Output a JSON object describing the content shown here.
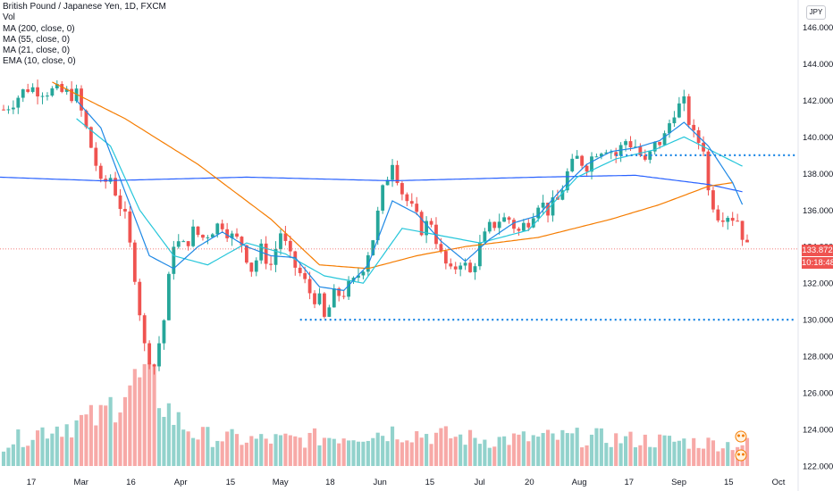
{
  "header": {
    "title": "British Pound / Japanese Yen, 1D, FXCM",
    "currency_badge": "JPY"
  },
  "legend": {
    "items": [
      "Vol",
      "MA (200, close, 0)",
      "MA (55, close, 0)",
      "MA (21, close, 0)",
      "EMA (10, close, 0)"
    ]
  },
  "price_badges": {
    "last_price": "133.872",
    "countdown": "10:18:48"
  },
  "colors": {
    "up": "#26a69a",
    "down": "#ef5350",
    "ma200": "#2962ff",
    "ma55": "#f57c00",
    "ma21": "#26c6da",
    "ema10": "#1e88e5",
    "level": "#1e88e5"
  },
  "chart_data": {
    "type": "candlestick",
    "symbol": "GBP/JPY",
    "timeframe": "1D",
    "ylim": [
      122,
      147
    ],
    "yticks": [
      "146.000",
      "144.000",
      "142.000",
      "140.000",
      "138.000",
      "136.000",
      "134.000",
      "132.000",
      "130.000",
      "128.000",
      "126.000",
      "124.000",
      "122.000"
    ],
    "xtick_labels": [
      "17",
      "Mar",
      "16",
      "Apr",
      "15",
      "May",
      "18",
      "Jun",
      "15",
      "Jul",
      "20",
      "Aug",
      "17",
      "Sep",
      "15",
      "Oct"
    ],
    "horizontal_levels": [
      139.0,
      130.0
    ],
    "last_price": 133.872,
    "close_path": [
      [
        0,
        141.5
      ],
      [
        5,
        142.7
      ],
      [
        10,
        142.5
      ],
      [
        15,
        142.3
      ],
      [
        19,
        138.5
      ],
      [
        20,
        137.3
      ],
      [
        22,
        137.8
      ],
      [
        25,
        135.5
      ],
      [
        27,
        132.5
      ],
      [
        29,
        128.5
      ],
      [
        31,
        127.5
      ],
      [
        33,
        130.0
      ],
      [
        35,
        134.3
      ],
      [
        37,
        134.0
      ],
      [
        39,
        134.8
      ],
      [
        41,
        134.5
      ],
      [
        43,
        135.0
      ],
      [
        45,
        135.3
      ],
      [
        47,
        134.5
      ],
      [
        49,
        134.2
      ],
      [
        51,
        132.8
      ],
      [
        53,
        133.8
      ],
      [
        55,
        133.0
      ],
      [
        57,
        134.8
      ],
      [
        59,
        133.3
      ],
      [
        61,
        132.5
      ],
      [
        63,
        131.5
      ],
      [
        65,
        131.0
      ],
      [
        66,
        130.0
      ],
      [
        68,
        131.3
      ],
      [
        70,
        131.5
      ],
      [
        72,
        132.0
      ],
      [
        74,
        133.0
      ],
      [
        76,
        134.5
      ],
      [
        78,
        137.0
      ],
      [
        80,
        138.8
      ],
      [
        82,
        137.0
      ],
      [
        84,
        136.0
      ],
      [
        86,
        135.0
      ],
      [
        88,
        135.4
      ],
      [
        90,
        133.5
      ],
      [
        92,
        132.5
      ],
      [
        94,
        133.3
      ],
      [
        96,
        132.5
      ],
      [
        98,
        134.0
      ],
      [
        100,
        135.0
      ],
      [
        102,
        135.5
      ],
      [
        104,
        135.5
      ],
      [
        106,
        134.8
      ],
      [
        108,
        135.5
      ],
      [
        110,
        136.5
      ],
      [
        112,
        136.0
      ],
      [
        114,
        136.5
      ],
      [
        116,
        138.0
      ],
      [
        118,
        138.8
      ],
      [
        120,
        138.5
      ],
      [
        122,
        139.3
      ],
      [
        124,
        139.5
      ],
      [
        126,
        139.0
      ],
      [
        128,
        139.8
      ],
      [
        130,
        139.5
      ],
      [
        132,
        138.5
      ],
      [
        134,
        139.5
      ],
      [
        136,
        140.0
      ],
      [
        138,
        141.5
      ],
      [
        140,
        141.8
      ],
      [
        142,
        140.0
      ],
      [
        144,
        139.5
      ],
      [
        145,
        137.0
      ],
      [
        147,
        135.8
      ],
      [
        149,
        135.8
      ],
      [
        151,
        135.5
      ],
      [
        153,
        133.9
      ]
    ],
    "moving_averages": {
      "MA 200": [
        [
          -1,
          137.8
        ],
        [
          20,
          137.6
        ],
        [
          50,
          137.8
        ],
        [
          80,
          137.6
        ],
        [
          110,
          137.8
        ],
        [
          130,
          137.9
        ],
        [
          145,
          137.4
        ],
        [
          152,
          137.0
        ]
      ],
      "MA 55": [
        [
          10,
          143.0
        ],
        [
          25,
          141.0
        ],
        [
          40,
          138.5
        ],
        [
          55,
          135.5
        ],
        [
          65,
          133.0
        ],
        [
          75,
          132.8
        ],
        [
          85,
          133.5
        ],
        [
          95,
          134.0
        ],
        [
          110,
          134.5
        ],
        [
          125,
          135.5
        ],
        [
          135,
          136.3
        ],
        [
          145,
          137.3
        ],
        [
          150,
          137.5
        ]
      ],
      "MA 21": [
        [
          15,
          141.0
        ],
        [
          22,
          139.5
        ],
        [
          28,
          136.0
        ],
        [
          35,
          133.5
        ],
        [
          42,
          133.0
        ],
        [
          50,
          134.2
        ],
        [
          58,
          133.6
        ],
        [
          66,
          132.4
        ],
        [
          74,
          132.0
        ],
        [
          82,
          135.0
        ],
        [
          90,
          134.6
        ],
        [
          98,
          134.2
        ],
        [
          108,
          134.9
        ],
        [
          118,
          137.8
        ],
        [
          126,
          138.8
        ],
        [
          134,
          139.3
        ],
        [
          140,
          140.0
        ],
        [
          146,
          139.2
        ],
        [
          152,
          138.4
        ]
      ],
      "EMA 10": [
        [
          15,
          142.0
        ],
        [
          20,
          140.5
        ],
        [
          25,
          137.0
        ],
        [
          30,
          133.5
        ],
        [
          35,
          132.8
        ],
        [
          40,
          134.0
        ],
        [
          45,
          134.8
        ],
        [
          50,
          134.0
        ],
        [
          55,
          133.5
        ],
        [
          60,
          133.4
        ],
        [
          65,
          131.8
        ],
        [
          70,
          131.6
        ],
        [
          75,
          133.0
        ],
        [
          80,
          136.5
        ],
        [
          85,
          135.8
        ],
        [
          90,
          134.3
        ],
        [
          95,
          133.2
        ],
        [
          100,
          134.4
        ],
        [
          105,
          135.3
        ],
        [
          110,
          135.7
        ],
        [
          115,
          137.2
        ],
        [
          120,
          138.5
        ],
        [
          125,
          139.2
        ],
        [
          130,
          139.4
        ],
        [
          135,
          139.8
        ],
        [
          140,
          140.8
        ],
        [
          145,
          139.5
        ],
        [
          150,
          137.5
        ],
        [
          152,
          136.3
        ]
      ]
    },
    "volume_path": [
      [
        0,
        0.25
      ],
      [
        10,
        0.45
      ],
      [
        20,
        0.55
      ],
      [
        25,
        0.9
      ],
      [
        30,
        1.0
      ],
      [
        35,
        0.55
      ],
      [
        40,
        0.35
      ],
      [
        50,
        0.3
      ],
      [
        60,
        0.3
      ],
      [
        70,
        0.35
      ],
      [
        80,
        0.4
      ],
      [
        90,
        0.35
      ],
      [
        100,
        0.3
      ],
      [
        110,
        0.32
      ],
      [
        120,
        0.33
      ],
      [
        130,
        0.3
      ],
      [
        140,
        0.28
      ],
      [
        150,
        0.25
      ]
    ]
  }
}
